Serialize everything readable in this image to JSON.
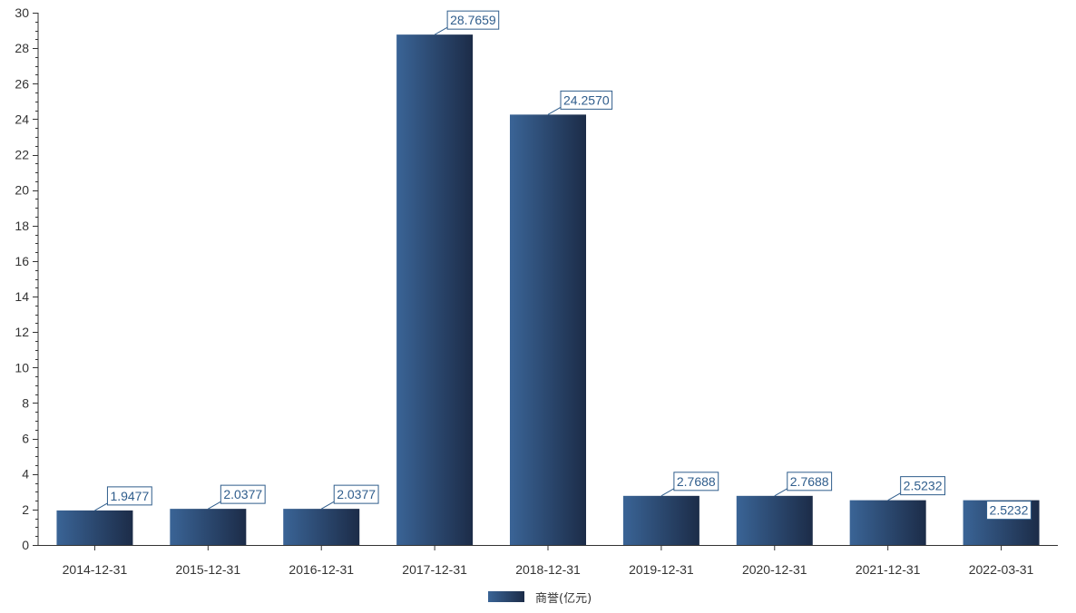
{
  "chart_data": {
    "type": "bar",
    "categories": [
      "2014-12-31",
      "2015-12-31",
      "2016-12-31",
      "2017-12-31",
      "2018-12-31",
      "2019-12-31",
      "2020-12-31",
      "2021-12-31",
      "2022-03-31"
    ],
    "series": [
      {
        "name": "商誉(亿元)",
        "values": [
          1.9477,
          2.0377,
          2.0377,
          28.7659,
          24.257,
          2.7688,
          2.7688,
          2.5232,
          2.5232
        ]
      }
    ],
    "data_labels": [
      "1.9477",
      "2.0377",
      "2.0377",
      "28.7659",
      "24.2570",
      "2.7688",
      "2.7688",
      "2.5232",
      "2.5232"
    ],
    "ylim": [
      0,
      30
    ],
    "yticks": [
      0,
      2,
      4,
      6,
      8,
      10,
      12,
      14,
      16,
      18,
      20,
      22,
      24,
      26,
      28,
      30
    ],
    "grid": false,
    "legend_position": "bottom-center",
    "colors": {
      "bar_light": "#3a6496",
      "bar_dark": "#1c2c48",
      "label": "#2f5d8c",
      "axis": "#333333"
    }
  }
}
